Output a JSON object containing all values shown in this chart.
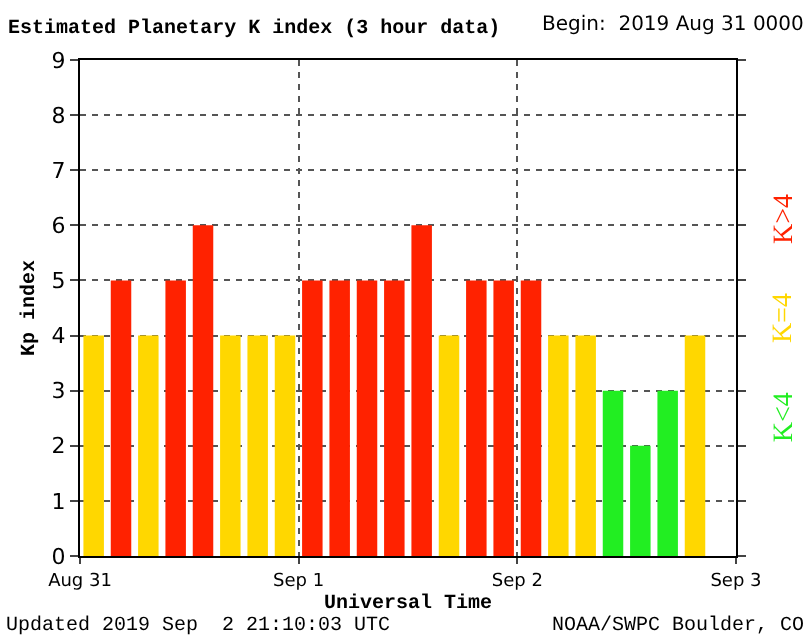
{
  "chart_data": {
    "type": "bar",
    "title": "Estimated Planetary K index (3 hour data)",
    "xlabel": "Universal Time",
    "ylabel": "Kp index",
    "x": [
      "2019-08-31T01:30",
      "2019-08-31T04:30",
      "2019-08-31T07:30",
      "2019-08-31T10:30",
      "2019-08-31T13:30",
      "2019-08-31T16:30",
      "2019-08-31T19:30",
      "2019-08-31T22:30",
      "2019-09-01T01:30",
      "2019-09-01T04:30",
      "2019-09-01T07:30",
      "2019-09-01T10:30",
      "2019-09-01T13:30",
      "2019-09-01T16:30",
      "2019-09-01T19:30",
      "2019-09-01T22:30",
      "2019-09-02T01:30",
      "2019-09-02T04:30",
      "2019-09-02T07:30",
      "2019-09-02T10:30",
      "2019-09-02T13:30",
      "2019-09-02T16:30",
      "2019-09-02T19:30"
    ],
    "series": [
      {
        "name": "K<4",
        "color": "#22ee22",
        "values": [
          null,
          null,
          null,
          null,
          null,
          null,
          null,
          null,
          null,
          null,
          null,
          null,
          null,
          null,
          null,
          null,
          null,
          null,
          null,
          3,
          2,
          3,
          null
        ]
      },
      {
        "name": "K=4",
        "color": "#ffd700",
        "values": [
          4,
          null,
          4,
          null,
          null,
          4,
          4,
          4,
          null,
          null,
          null,
          null,
          null,
          4,
          null,
          null,
          null,
          4,
          4,
          null,
          null,
          null,
          4
        ]
      },
      {
        "name": "K>4",
        "color": "#ff2200",
        "values": [
          null,
          5,
          null,
          5,
          6,
          null,
          null,
          null,
          5,
          5,
          5,
          5,
          6,
          null,
          5,
          5,
          5,
          null,
          null,
          null,
          null,
          null,
          null
        ]
      }
    ],
    "xlim": [
      "2019-08-31T00:00",
      "2019-09-03T00:00"
    ],
    "xticks": [
      {
        "value": "2019-08-31T00:00",
        "label": "Aug 31"
      },
      {
        "value": "2019-09-01T00:00",
        "label": "Sep 1"
      },
      {
        "value": "2019-09-02T00:00",
        "label": "Sep 2"
      },
      {
        "value": "2019-09-03T00:00",
        "label": "Sep 3"
      }
    ],
    "ylim": [
      0,
      9
    ],
    "yticks": [
      0,
      1,
      2,
      3,
      4,
      5,
      6,
      7,
      8,
      9
    ],
    "grid": true,
    "legend": "right",
    "annotations": [
      "Begin:  2019 Aug 31 0000",
      "Updated 2019 Sep  2 21:10:03 UTC",
      "NOAA/SWPC Boulder, CO"
    ]
  }
}
